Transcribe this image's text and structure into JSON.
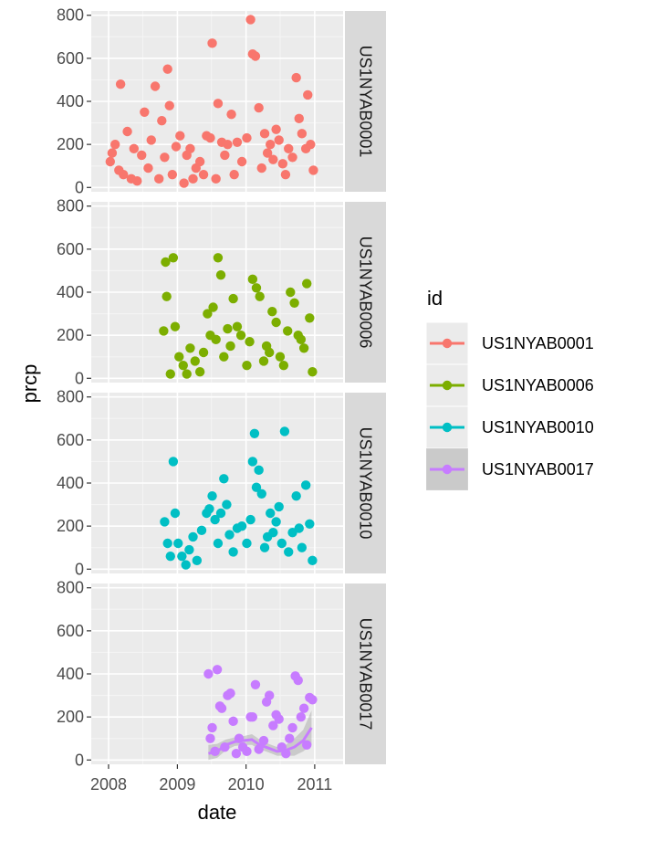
{
  "chart_data": {
    "type": "scatter",
    "xlabel": "date",
    "ylabel": "prcp",
    "x_ticks": [
      "2008",
      "2009",
      "2010",
      "2011"
    ],
    "x_range": [
      "2007-10-01",
      "2011-06-01"
    ],
    "y_ticks": [
      "0",
      "200",
      "400",
      "600",
      "800"
    ],
    "ylim": [
      -20,
      820
    ],
    "grid": true,
    "legend": {
      "title": "id",
      "position": "right"
    },
    "panels": [
      {
        "id": "US1NYAB0001",
        "color": "#F8766D",
        "points": [
          [
            "2008-01-10",
            120
          ],
          [
            "2008-01-20",
            160
          ],
          [
            "2008-02-05",
            200
          ],
          [
            "2008-02-25",
            80
          ],
          [
            "2008-03-05",
            480
          ],
          [
            "2008-03-20",
            60
          ],
          [
            "2008-04-10",
            260
          ],
          [
            "2008-05-01",
            40
          ],
          [
            "2008-05-15",
            180
          ],
          [
            "2008-06-01",
            30
          ],
          [
            "2008-06-25",
            150
          ],
          [
            "2008-07-10",
            350
          ],
          [
            "2008-07-30",
            90
          ],
          [
            "2008-08-15",
            220
          ],
          [
            "2008-09-05",
            470
          ],
          [
            "2008-09-25",
            40
          ],
          [
            "2008-10-10",
            310
          ],
          [
            "2008-10-25",
            140
          ],
          [
            "2008-11-10",
            550
          ],
          [
            "2008-11-20",
            380
          ],
          [
            "2008-12-05",
            60
          ],
          [
            "2008-12-25",
            190
          ],
          [
            "2009-01-15",
            240
          ],
          [
            "2009-02-05",
            20
          ],
          [
            "2009-02-20",
            150
          ],
          [
            "2009-03-10",
            180
          ],
          [
            "2009-03-25",
            40
          ],
          [
            "2009-04-10",
            90
          ],
          [
            "2009-05-01",
            120
          ],
          [
            "2009-05-20",
            60
          ],
          [
            "2009-06-05",
            240
          ],
          [
            "2009-06-25",
            230
          ],
          [
            "2009-07-05",
            670
          ],
          [
            "2009-07-25",
            40
          ],
          [
            "2009-08-05",
            390
          ],
          [
            "2009-08-25",
            210
          ],
          [
            "2009-09-10",
            150
          ],
          [
            "2009-09-25",
            200
          ],
          [
            "2009-10-15",
            340
          ],
          [
            "2009-10-30",
            60
          ],
          [
            "2009-11-15",
            210
          ],
          [
            "2009-12-10",
            120
          ],
          [
            "2010-01-05",
            230
          ],
          [
            "2010-01-25",
            780
          ],
          [
            "2010-02-05",
            620
          ],
          [
            "2010-02-20",
            610
          ],
          [
            "2010-03-10",
            370
          ],
          [
            "2010-03-25",
            90
          ],
          [
            "2010-04-10",
            250
          ],
          [
            "2010-04-25",
            160
          ],
          [
            "2010-05-10",
            200
          ],
          [
            "2010-05-25",
            130
          ],
          [
            "2010-06-10",
            270
          ],
          [
            "2010-06-25",
            220
          ],
          [
            "2010-07-15",
            110
          ],
          [
            "2010-07-30",
            60
          ],
          [
            "2010-08-15",
            180
          ],
          [
            "2010-09-05",
            140
          ],
          [
            "2010-09-25",
            510
          ],
          [
            "2010-10-10",
            320
          ],
          [
            "2010-10-25",
            250
          ],
          [
            "2010-11-15",
            180
          ],
          [
            "2010-11-25",
            430
          ],
          [
            "2010-12-10",
            200
          ],
          [
            "2010-12-25",
            80
          ]
        ]
      },
      {
        "id": "US1NYAB0006",
        "color": "#7CAE00",
        "points": [
          [
            "2008-10-20",
            220
          ],
          [
            "2008-10-30",
            540
          ],
          [
            "2008-11-05",
            380
          ],
          [
            "2008-11-25",
            20
          ],
          [
            "2008-12-10",
            560
          ],
          [
            "2008-12-20",
            240
          ],
          [
            "2009-01-10",
            100
          ],
          [
            "2009-02-01",
            60
          ],
          [
            "2009-02-20",
            20
          ],
          [
            "2009-03-10",
            140
          ],
          [
            "2009-04-05",
            80
          ],
          [
            "2009-05-01",
            30
          ],
          [
            "2009-05-20",
            120
          ],
          [
            "2009-06-10",
            300
          ],
          [
            "2009-06-25",
            200
          ],
          [
            "2009-07-10",
            330
          ],
          [
            "2009-07-25",
            180
          ],
          [
            "2009-08-05",
            560
          ],
          [
            "2009-08-20",
            480
          ],
          [
            "2009-09-05",
            100
          ],
          [
            "2009-09-25",
            230
          ],
          [
            "2009-10-10",
            150
          ],
          [
            "2009-10-25",
            370
          ],
          [
            "2009-11-15",
            240
          ],
          [
            "2009-12-05",
            200
          ],
          [
            "2010-01-05",
            60
          ],
          [
            "2010-01-20",
            170
          ],
          [
            "2010-02-05",
            460
          ],
          [
            "2010-02-25",
            420
          ],
          [
            "2010-03-15",
            380
          ],
          [
            "2010-04-05",
            80
          ],
          [
            "2010-04-20",
            150
          ],
          [
            "2010-05-05",
            120
          ],
          [
            "2010-05-20",
            310
          ],
          [
            "2010-06-10",
            260
          ],
          [
            "2010-07-01",
            100
          ],
          [
            "2010-07-20",
            60
          ],
          [
            "2010-08-10",
            220
          ],
          [
            "2010-08-25",
            400
          ],
          [
            "2010-09-15",
            350
          ],
          [
            "2010-10-05",
            200
          ],
          [
            "2010-10-20",
            180
          ],
          [
            "2010-11-05",
            140
          ],
          [
            "2010-11-20",
            440
          ],
          [
            "2010-12-05",
            280
          ],
          [
            "2010-12-20",
            30
          ]
        ]
      },
      {
        "id": "US1NYAB0010",
        "color": "#00BFC4",
        "points": [
          [
            "2008-10-25",
            220
          ],
          [
            "2008-11-10",
            120
          ],
          [
            "2008-11-25",
            60
          ],
          [
            "2008-12-10",
            500
          ],
          [
            "2008-12-20",
            260
          ],
          [
            "2009-01-05",
            120
          ],
          [
            "2009-01-25",
            60
          ],
          [
            "2009-02-15",
            20
          ],
          [
            "2009-03-05",
            90
          ],
          [
            "2009-03-25",
            150
          ],
          [
            "2009-04-15",
            40
          ],
          [
            "2009-05-10",
            180
          ],
          [
            "2009-06-05",
            260
          ],
          [
            "2009-06-20",
            280
          ],
          [
            "2009-07-05",
            340
          ],
          [
            "2009-07-20",
            230
          ],
          [
            "2009-08-05",
            120
          ],
          [
            "2009-08-20",
            260
          ],
          [
            "2009-09-05",
            420
          ],
          [
            "2009-09-20",
            300
          ],
          [
            "2009-10-05",
            160
          ],
          [
            "2009-10-25",
            80
          ],
          [
            "2009-11-15",
            190
          ],
          [
            "2009-12-10",
            200
          ],
          [
            "2010-01-05",
            120
          ],
          [
            "2010-01-25",
            230
          ],
          [
            "2010-02-05",
            500
          ],
          [
            "2010-02-15",
            630
          ],
          [
            "2010-02-25",
            380
          ],
          [
            "2010-03-10",
            460
          ],
          [
            "2010-03-25",
            350
          ],
          [
            "2010-04-10",
            100
          ],
          [
            "2010-04-25",
            150
          ],
          [
            "2010-05-10",
            260
          ],
          [
            "2010-05-25",
            170
          ],
          [
            "2010-06-10",
            220
          ],
          [
            "2010-06-25",
            290
          ],
          [
            "2010-07-10",
            120
          ],
          [
            "2010-07-25",
            640
          ],
          [
            "2010-08-15",
            80
          ],
          [
            "2010-09-05",
            170
          ],
          [
            "2010-09-25",
            340
          ],
          [
            "2010-10-10",
            190
          ],
          [
            "2010-10-25",
            100
          ],
          [
            "2010-11-15",
            390
          ],
          [
            "2010-12-05",
            210
          ],
          [
            "2010-12-20",
            40
          ]
        ]
      },
      {
        "id": "US1NYAB0017",
        "color": "#C77CFF",
        "points": [
          [
            "2009-06-15",
            400
          ],
          [
            "2009-06-25",
            100
          ],
          [
            "2009-07-05",
            150
          ],
          [
            "2009-07-20",
            40
          ],
          [
            "2009-08-01",
            420
          ],
          [
            "2009-08-15",
            250
          ],
          [
            "2009-08-25",
            240
          ],
          [
            "2009-09-10",
            60
          ],
          [
            "2009-09-25",
            300
          ],
          [
            "2009-10-10",
            310
          ],
          [
            "2009-10-25",
            180
          ],
          [
            "2009-11-10",
            30
          ],
          [
            "2009-11-25",
            100
          ],
          [
            "2009-12-15",
            60
          ],
          [
            "2010-01-05",
            40
          ],
          [
            "2010-01-25",
            200
          ],
          [
            "2010-02-05",
            200
          ],
          [
            "2010-02-20",
            350
          ],
          [
            "2010-03-10",
            50
          ],
          [
            "2010-04-05",
            90
          ],
          [
            "2010-04-20",
            270
          ],
          [
            "2010-05-05",
            300
          ],
          [
            "2010-05-25",
            160
          ],
          [
            "2010-06-10",
            210
          ],
          [
            "2010-06-25",
            190
          ],
          [
            "2010-07-10",
            60
          ],
          [
            "2010-08-01",
            30
          ],
          [
            "2010-08-20",
            100
          ],
          [
            "2010-09-05",
            150
          ],
          [
            "2010-09-20",
            390
          ],
          [
            "2010-10-05",
            370
          ],
          [
            "2010-10-20",
            200
          ],
          [
            "2010-11-05",
            240
          ],
          [
            "2010-11-20",
            70
          ],
          [
            "2010-12-05",
            290
          ],
          [
            "2010-12-20",
            280
          ]
        ],
        "smooth": {
          "x": [
            "2009-06-15",
            "2009-08-01",
            "2009-09-15",
            "2009-11-01",
            "2009-12-15",
            "2010-02-01",
            "2010-03-15",
            "2010-05-01",
            "2010-06-15",
            "2010-08-01",
            "2010-09-15",
            "2010-11-01",
            "2010-12-15"
          ],
          "y": [
            30,
            40,
            70,
            85,
            90,
            95,
            70,
            55,
            40,
            45,
            60,
            90,
            150
          ],
          "lo": [
            0,
            10,
            45,
            65,
            70,
            70,
            50,
            35,
            20,
            20,
            20,
            40,
            70
          ],
          "hi": [
            70,
            75,
            95,
            105,
            110,
            120,
            95,
            75,
            60,
            70,
            100,
            140,
            230
          ]
        }
      }
    ]
  }
}
